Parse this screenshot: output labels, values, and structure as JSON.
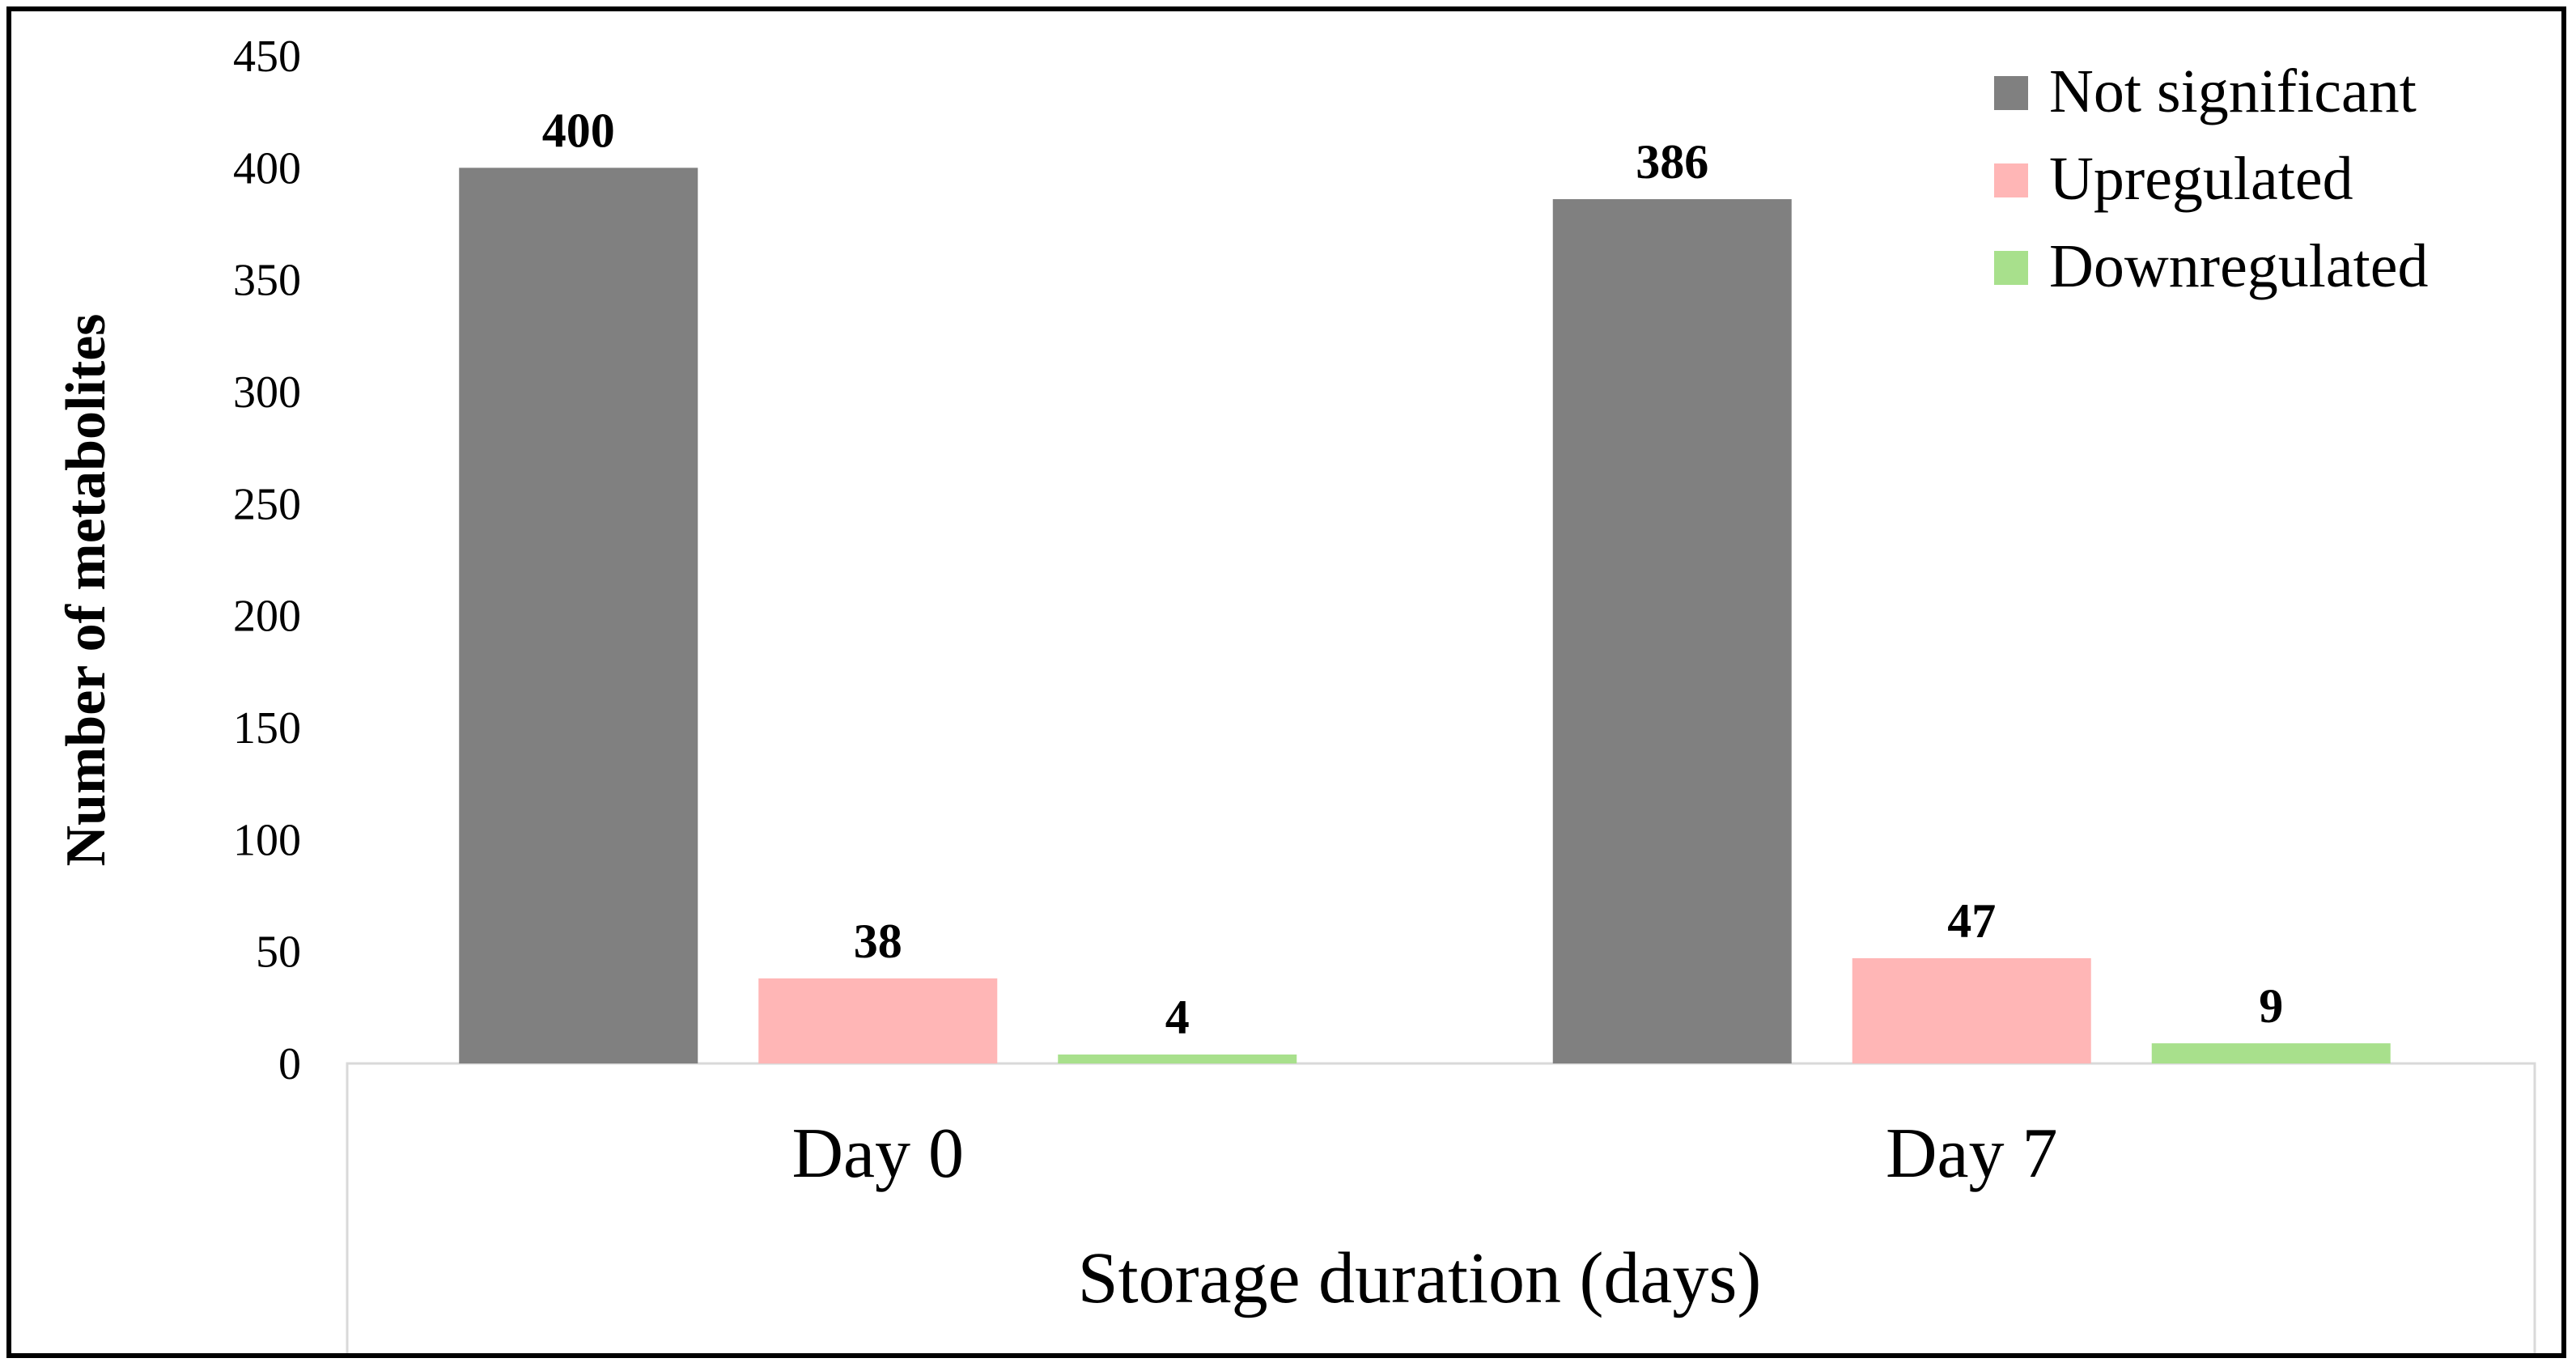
{
  "chart_data": {
    "type": "bar",
    "title": "",
    "categories": [
      "Day 0",
      "Day 7"
    ],
    "series": [
      {
        "name": "Not significant",
        "values": [
          400,
          386
        ],
        "color": "#808080"
      },
      {
        "name": "Upregulated",
        "values": [
          38,
          47
        ],
        "color": "#FFB6B6"
      },
      {
        "name": "Downregulated",
        "values": [
          4,
          9
        ],
        "color": "#A8E08C"
      }
    ],
    "xlabel": "Storage duration (days)",
    "ylabel": "Number of metabolites",
    "ylim": [
      0,
      450
    ],
    "yticks": [
      0,
      50,
      100,
      150,
      200,
      250,
      300,
      350,
      400,
      450
    ],
    "grid": false,
    "legend": "top-right",
    "data_labels": true
  }
}
